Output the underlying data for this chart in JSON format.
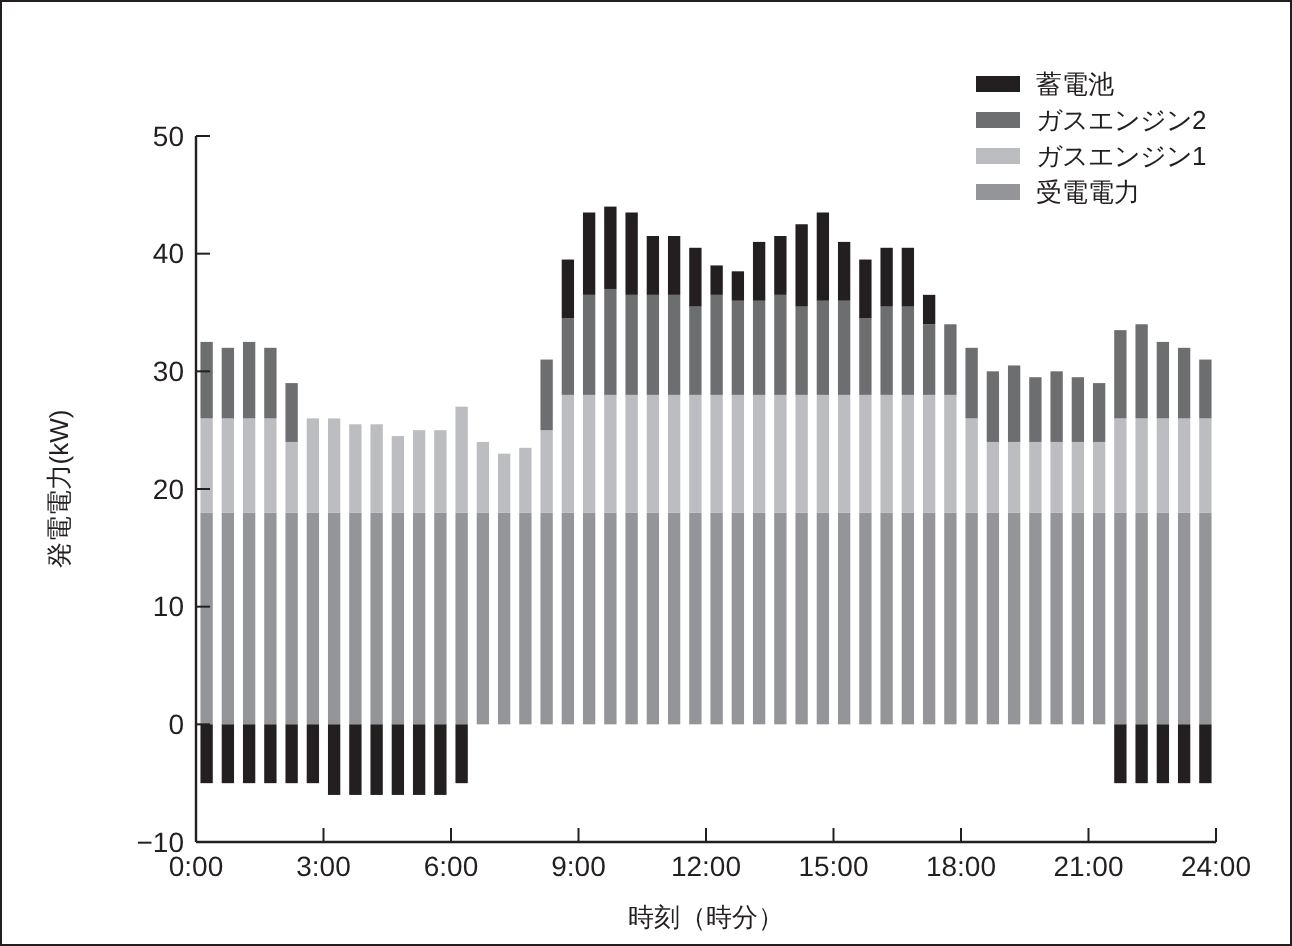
{
  "chart_data": {
    "type": "bar",
    "stacked": true,
    "xlabel": "時刻（時分）",
    "ylabel": "発電電力(kW)",
    "x": [
      0.25,
      0.75,
      1.25,
      1.75,
      2.25,
      2.75,
      3.25,
      3.75,
      4.25,
      4.75,
      5.25,
      5.75,
      6.25,
      6.75,
      7.25,
      7.75,
      8.25,
      8.75,
      9.25,
      9.75,
      10.25,
      10.75,
      11.25,
      11.75,
      12.25,
      12.75,
      13.25,
      13.75,
      14.25,
      14.75,
      15.25,
      15.75,
      16.25,
      16.75,
      17.25,
      17.75,
      18.25,
      18.75,
      19.25,
      19.75,
      20.25,
      20.75,
      21.25,
      21.75,
      22.25,
      22.75,
      23.25,
      23.75
    ],
    "series": [
      {
        "name": "受電電力",
        "color": "#939598",
        "values": [
          18,
          18,
          18,
          18,
          18,
          18,
          18,
          18,
          18,
          18,
          18,
          18,
          18,
          18,
          18,
          18,
          18,
          18,
          18,
          18,
          18,
          18,
          18,
          18,
          18,
          18,
          18,
          18,
          18,
          18,
          18,
          18,
          18,
          18,
          18,
          18,
          18,
          18,
          18,
          18,
          18,
          18,
          18,
          18,
          18,
          18,
          18,
          18
        ]
      },
      {
        "name": "ガスエンジン1",
        "color": "#bcbdc0",
        "values": [
          8,
          8,
          8,
          8,
          6,
          8,
          8,
          7.5,
          7.5,
          6.5,
          7,
          7,
          9,
          6,
          5,
          5.5,
          7,
          10,
          10,
          10,
          10,
          10,
          10,
          10,
          10,
          10,
          10,
          10,
          10,
          10,
          10,
          10,
          10,
          10,
          10,
          10,
          8,
          6,
          6,
          6,
          6,
          6,
          6,
          8,
          8,
          8,
          8,
          8
        ]
      },
      {
        "name": "ガスエンジン2",
        "color": "#6d6e70",
        "values": [
          6.5,
          6,
          6.5,
          6,
          5,
          0,
          0,
          0,
          0,
          0,
          0,
          0,
          0,
          0,
          0,
          0,
          6,
          6.5,
          8.5,
          9,
          8.5,
          8.5,
          8.5,
          7.5,
          8.5,
          8,
          8,
          8.5,
          7.5,
          8,
          8,
          6.5,
          7.5,
          7.5,
          6,
          6,
          6,
          6,
          6.5,
          5.5,
          6,
          5.5,
          5,
          7.5,
          8,
          6.5,
          6,
          5
        ]
      },
      {
        "name": "蓄電池",
        "color": "#231f20",
        "values": [
          -5,
          -5,
          -5,
          -5,
          -5,
          -5,
          -6,
          -6,
          -6,
          -6,
          -6,
          -6,
          -5,
          0,
          0,
          0,
          0,
          5,
          7,
          7,
          7,
          5,
          5,
          5,
          2.5,
          2.5,
          5,
          5,
          7,
          7.5,
          5,
          5,
          5,
          5,
          2.5,
          0,
          0,
          0,
          0,
          0,
          0,
          0,
          0,
          -5,
          -5,
          -5,
          -5,
          -5
        ]
      }
    ],
    "xlim": [
      0,
      24
    ],
    "xticks": [
      {
        "value": 0,
        "label": "0:00"
      },
      {
        "value": 3,
        "label": "3:00"
      },
      {
        "value": 6,
        "label": "6:00"
      },
      {
        "value": 9,
        "label": "9:00"
      },
      {
        "value": 12,
        "label": "12:00"
      },
      {
        "value": 15,
        "label": "15:00"
      },
      {
        "value": 18,
        "label": "18:00"
      },
      {
        "value": 21,
        "label": "21:00"
      },
      {
        "value": 24,
        "label": "24:00"
      }
    ],
    "ylim": [
      -10,
      50
    ],
    "yticks": [
      {
        "value": -10,
        "label": "−10"
      },
      0,
      10,
      20,
      30,
      40,
      50
    ],
    "legend": "top right",
    "grid": false
  }
}
